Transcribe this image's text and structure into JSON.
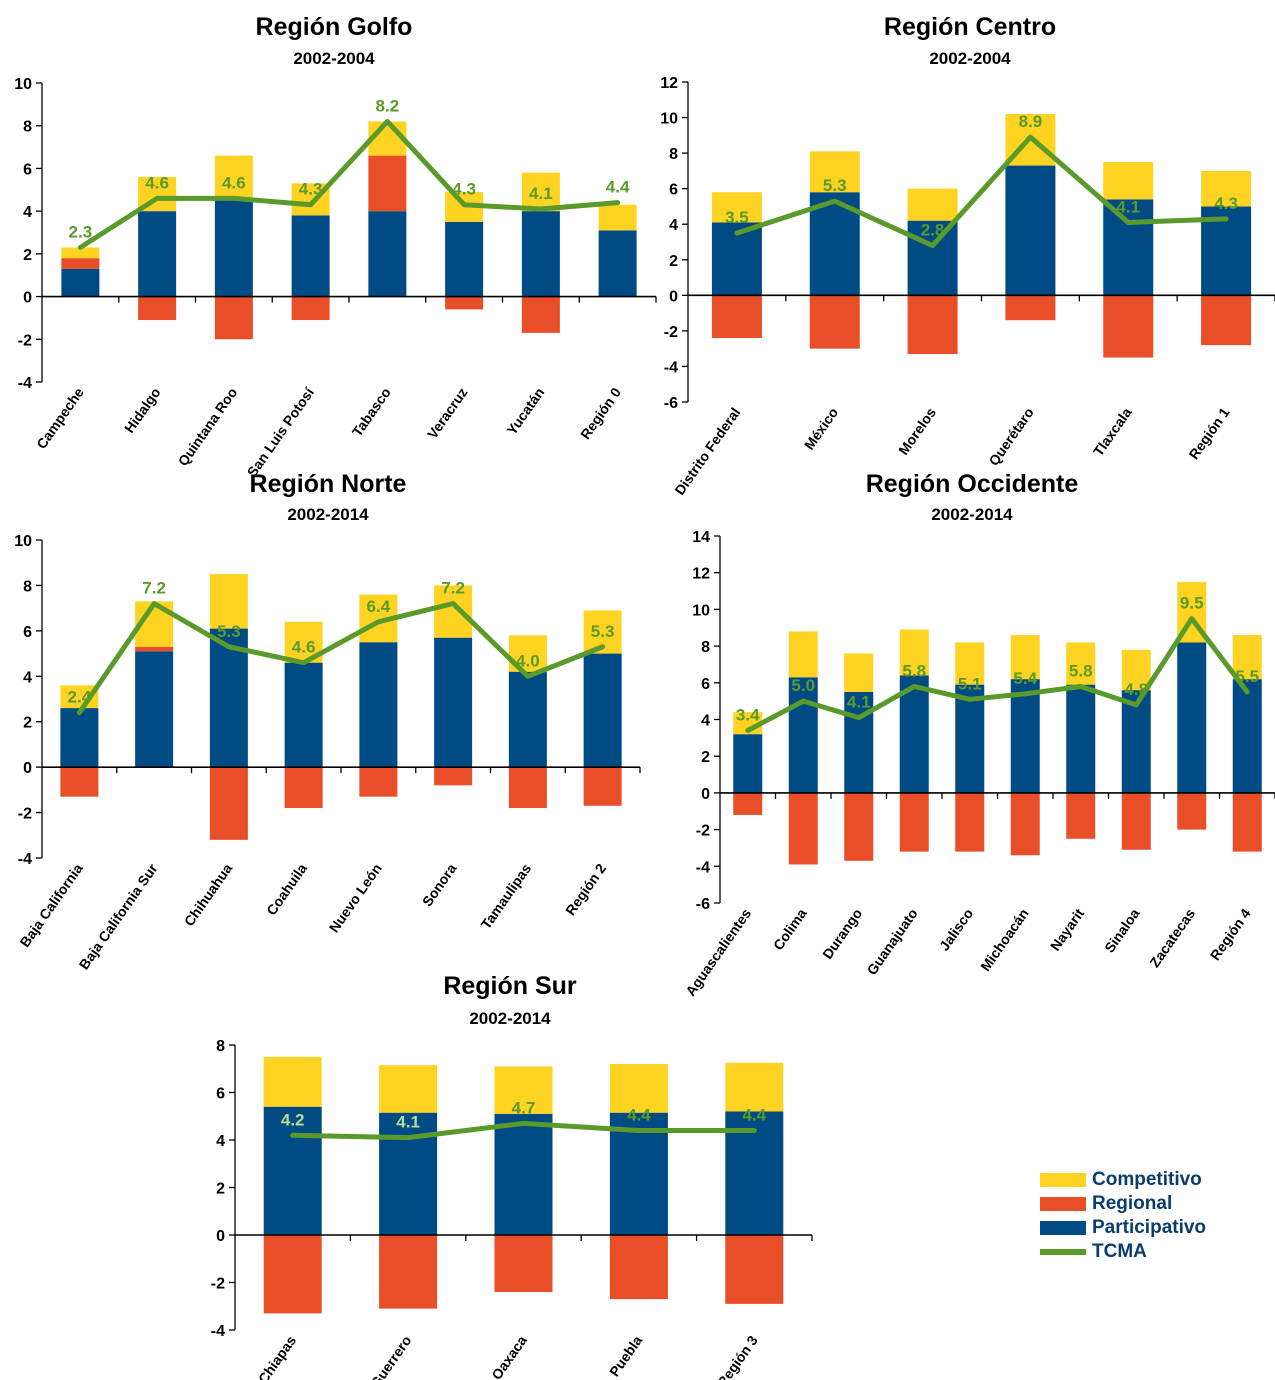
{
  "colors": {
    "competitivo": "#fed321",
    "regional": "#e84e27",
    "participativo": "#014b85",
    "tcma": "#5a9a2a",
    "axis": "#000000",
    "title": "#000000"
  },
  "legend": [
    {
      "key": "competitivo",
      "label": "Competitivo",
      "type": "bar"
    },
    {
      "key": "regional",
      "label": "Regional",
      "type": "bar"
    },
    {
      "key": "participativo",
      "label": "Participativo",
      "type": "bar"
    },
    {
      "key": "tcma",
      "label": "TCMA",
      "type": "line"
    }
  ],
  "chart_data": [
    {
      "type": "bar",
      "title": "Región Golfo",
      "subtitle": "2002-2004",
      "ylim": [
        -4,
        10
      ],
      "yticks": [
        -4,
        -2,
        0,
        2,
        4,
        6,
        8,
        10
      ],
      "categories": [
        "Campeche",
        "Hidalgo",
        "Quintana Roo",
        "San Luis Potosí",
        "Tabasco",
        "Veracruz",
        "Yucatán",
        "Región 0"
      ],
      "series": [
        {
          "name": "Participativo",
          "values": [
            1.3,
            4.0,
            4.5,
            3.8,
            4.0,
            3.5,
            4.0,
            3.1
          ]
        },
        {
          "name": "Regional",
          "values": [
            0.5,
            -1.1,
            -2.0,
            -1.1,
            2.6,
            -0.6,
            -1.7,
            0
          ]
        },
        {
          "name": "Competitivo",
          "values": [
            0.5,
            1.6,
            2.1,
            1.5,
            1.6,
            1.4,
            1.8,
            1.2
          ]
        },
        {
          "name": "TCMA",
          "values": [
            2.3,
            4.6,
            4.6,
            4.3,
            8.2,
            4.3,
            4.1,
            4.4
          ]
        }
      ],
      "data_labels": [
        "2.3",
        "4.6",
        "4.6",
        "4.3",
        "8.2",
        "4.3",
        "4.1",
        "4.4"
      ]
    },
    {
      "type": "bar",
      "title": "Región Centro",
      "subtitle": "2002-2004",
      "ylim": [
        -6,
        12
      ],
      "yticks": [
        -6,
        -4,
        -2,
        0,
        2,
        4,
        6,
        8,
        10,
        12
      ],
      "categories": [
        "Distrito Federal",
        "México",
        "Morelos",
        "Querétaro",
        "Tlaxcala",
        "Región 1"
      ],
      "series": [
        {
          "name": "Participativo",
          "values": [
            4.1,
            5.8,
            4.2,
            7.3,
            5.4,
            5.0
          ]
        },
        {
          "name": "Regional",
          "values": [
            -2.4,
            -3.0,
            -3.3,
            -1.4,
            -3.5,
            -2.8
          ]
        },
        {
          "name": "Competitivo",
          "values": [
            1.7,
            2.3,
            1.8,
            2.9,
            2.1,
            2.0
          ]
        },
        {
          "name": "TCMA",
          "values": [
            3.5,
            5.3,
            2.8,
            8.9,
            4.1,
            4.3
          ]
        }
      ],
      "data_labels": [
        "3.5",
        "5.3",
        "2.8",
        "8.9",
        "4.1",
        "4.3"
      ]
    },
    {
      "type": "bar",
      "title": "Región Norte",
      "subtitle": "2002-2014",
      "ylim": [
        -4,
        10
      ],
      "yticks": [
        -4,
        -2,
        0,
        2,
        4,
        6,
        8,
        10
      ],
      "categories": [
        "Baja California",
        "Baja California Sur",
        "Chihuahua",
        "Coahuila",
        "Nuevo León",
        "Sonora",
        "Tamaulipas",
        "Región 2"
      ],
      "series": [
        {
          "name": "Participativo",
          "values": [
            2.6,
            5.1,
            6.1,
            4.6,
            5.5,
            5.7,
            4.2,
            5.0
          ]
        },
        {
          "name": "Regional",
          "values": [
            -1.3,
            0.2,
            -3.2,
            -1.8,
            -1.3,
            -0.8,
            -1.8,
            -1.7
          ]
        },
        {
          "name": "Competitivo",
          "values": [
            1.0,
            2.0,
            2.4,
            1.8,
            2.1,
            2.3,
            1.6,
            1.9
          ]
        },
        {
          "name": "TCMA",
          "values": [
            2.4,
            7.2,
            5.3,
            4.6,
            6.4,
            7.2,
            4.0,
            5.3
          ]
        }
      ],
      "data_labels": [
        "2.4",
        "7.2",
        "5.3",
        "4.6",
        "6.4",
        "7.2",
        "4.0",
        "5.3"
      ]
    },
    {
      "type": "bar",
      "title": "Región Occidente",
      "subtitle": "2002-2014",
      "ylim": [
        -6,
        14
      ],
      "yticks": [
        -6,
        -4,
        -2,
        0,
        2,
        4,
        6,
        8,
        10,
        12,
        14
      ],
      "categories": [
        "Aguascalientes",
        "Colima",
        "Durango",
        "Guanajuato",
        "Jalisco",
        "Michoacán",
        "Nayarit",
        "Sinaloa",
        "Zacatecas",
        "Región 4"
      ],
      "series": [
        {
          "name": "Participativo",
          "values": [
            3.2,
            6.3,
            5.5,
            6.4,
            5.9,
            6.2,
            5.9,
            5.6,
            8.2,
            6.2
          ]
        },
        {
          "name": "Regional",
          "values": [
            -1.2,
            -3.9,
            -3.7,
            -3.2,
            -3.2,
            -3.4,
            -2.5,
            -3.1,
            -2.0,
            -3.2
          ]
        },
        {
          "name": "Competitivo",
          "values": [
            1.2,
            2.5,
            2.1,
            2.5,
            2.3,
            2.4,
            2.3,
            2.2,
            3.3,
            2.4
          ]
        },
        {
          "name": "TCMA",
          "values": [
            3.4,
            5.0,
            4.1,
            5.8,
            5.1,
            5.4,
            5.8,
            4.8,
            9.5,
            5.5
          ]
        }
      ],
      "data_labels": [
        "3.4",
        "5.0",
        "4.1",
        "5.8",
        "5.1",
        "5.4",
        "5.8",
        "4.8",
        "9.5",
        "5.5"
      ]
    },
    {
      "type": "bar",
      "title": "Región Sur",
      "subtitle": "2002-2014",
      "ylim": [
        -4,
        8
      ],
      "yticks": [
        -4,
        -2,
        0,
        2,
        4,
        6,
        8
      ],
      "categories": [
        "Chiapas",
        "Guerrero",
        "Oaxaca",
        "Puebla",
        "Región 3"
      ],
      "series": [
        {
          "name": "Participativo",
          "values": [
            5.4,
            5.15,
            5.1,
            5.15,
            5.2
          ]
        },
        {
          "name": "Regional",
          "values": [
            -3.3,
            -3.1,
            -2.4,
            -2.7,
            -2.9
          ]
        },
        {
          "name": "Competitivo",
          "values": [
            2.1,
            2.0,
            2.0,
            2.05,
            2.05
          ]
        },
        {
          "name": "TCMA",
          "values": [
            4.2,
            4.1,
            4.7,
            4.4,
            4.4
          ]
        }
      ],
      "data_labels": [
        "4.2",
        "4.1",
        "4.7",
        "4.4",
        "4.4"
      ]
    }
  ]
}
